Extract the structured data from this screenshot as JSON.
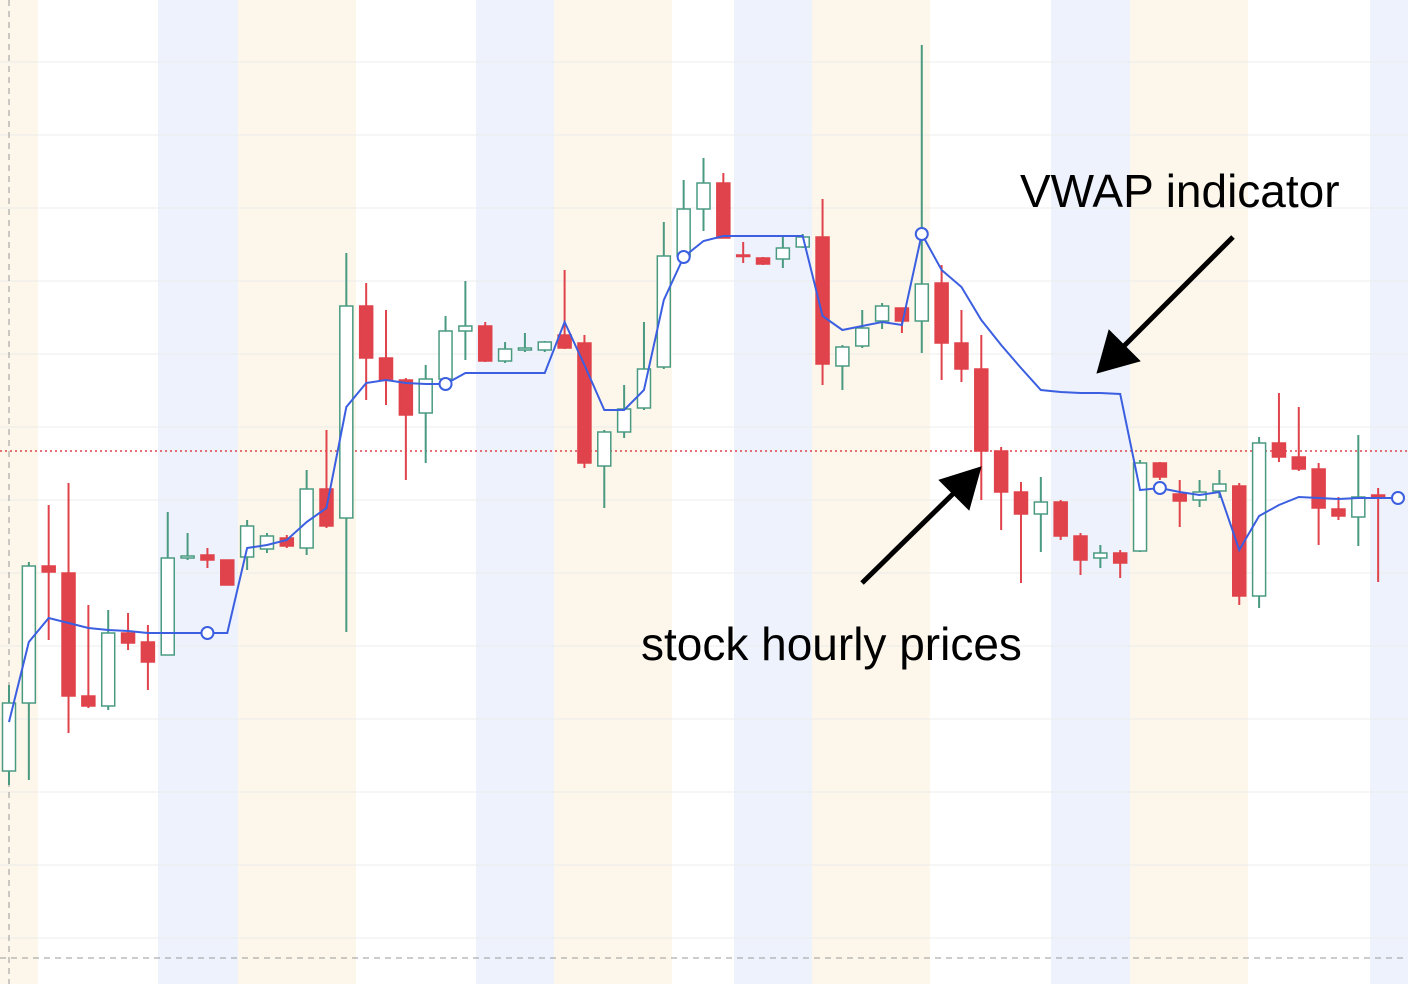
{
  "chart_data": {
    "type": "candlestick",
    "annotations": [
      "VWAP indicator",
      "stock hourly prices"
    ],
    "categories": [
      null,
      null,
      null,
      null,
      null,
      null,
      null,
      null,
      null,
      null,
      null,
      null,
      null,
      null,
      null,
      null,
      null,
      null,
      null,
      null,
      null,
      null,
      null,
      null,
      null,
      null,
      null,
      null,
      null,
      null,
      null,
      null,
      null,
      null,
      null,
      null,
      null,
      null,
      null,
      null,
      null,
      null,
      null,
      null,
      null,
      null,
      null,
      null,
      null,
      null,
      null,
      null,
      null,
      null,
      null,
      null,
      null,
      null,
      null,
      null,
      null,
      null,
      null,
      null,
      null,
      null,
      null,
      null,
      null,
      null,
      null
    ],
    "open": [
      21.3,
      28.1,
      41.8,
      41.1,
      28.8,
      27.8,
      35.1,
      34.2,
      32.9,
      42.6,
      42.9,
      42.4,
      42.7,
      43.5,
      44.6,
      43.6,
      49.5,
      46.6,
      67.8,
      62.6,
      60.4,
      57.1,
      60.5,
      65.3,
      65.8,
      62.3,
      63.4,
      63.4,
      64.9,
      64.1,
      51.8,
      55.2,
      57.6,
      61.7,
      72.8,
      77.5,
      80.1,
      72.9,
      72.6,
      72.5,
      73.7,
      74.7,
      61.8,
      63.8,
      66.3,
      67.6,
      66.3,
      70.1,
      64.1,
      61.5,
      53.3,
      49.2,
      47.0,
      48.2,
      44.8,
      42.6,
      43.1,
      43.3,
      52.1,
      49.0,
      48.4,
      49.3,
      49.8,
      38.8,
      54.1,
      52.7,
      51.5,
      47.5,
      46.7,
      48.9,
      null
    ],
    "high": [
      29.9,
      42.2,
      47.9,
      50.1,
      37.9,
      37.4,
      37.1,
      35.9,
      47.2,
      45.1,
      43.6,
      42.4,
      46.4,
      45.1,
      44.9,
      51.4,
      55.4,
      73.1,
      70.1,
      67.4,
      60.6,
      61.9,
      66.8,
      70.3,
      66.2,
      64.2,
      65.1,
      64.3,
      71.4,
      64.9,
      55.4,
      59.9,
      66.2,
      76.2,
      80.4,
      82.6,
      81.1,
      74.2,
      72.7,
      74.7,
      75.0,
      78.5,
      63.9,
      67.4,
      68.1,
      67.6,
      93.9,
      71.9,
      67.4,
      64.9,
      53.7,
      50.2,
      50.7,
      48.4,
      45.1,
      43.9,
      43.4,
      52.4,
      52.2,
      50.4,
      50.4,
      51.4,
      50.1,
      54.7,
      59.1,
      57.7,
      52.1,
      48.7,
      54.9,
      49.6,
      null
    ],
    "low": [
      19.9,
      20.4,
      34.4,
      25.1,
      27.6,
      27.4,
      33.4,
      29.4,
      32.9,
      42.4,
      41.6,
      39.9,
      41.4,
      43.1,
      43.6,
      42.9,
      45.6,
      35.2,
      58.4,
      57.9,
      50.4,
      52.1,
      60.2,
      62.4,
      62.2,
      62.1,
      63.2,
      63.2,
      63.5,
      51.6,
      47.6,
      54.6,
      57.4,
      61.5,
      72.6,
      75.3,
      74.6,
      72.1,
      71.9,
      71.6,
      73.6,
      59.9,
      59.4,
      63.6,
      65.5,
      65.1,
      63.1,
      60.4,
      60.2,
      48.4,
      45.4,
      40.1,
      43.2,
      44.4,
      40.9,
      41.6,
      40.6,
      43.2,
      50.4,
      45.7,
      47.7,
      48.6,
      37.9,
      37.6,
      52.2,
      51.3,
      43.9,
      46.4,
      43.8,
      40.2,
      null
    ],
    "close": [
      28.1,
      41.8,
      41.2,
      28.8,
      27.8,
      35.1,
      34.1,
      32.2,
      42.6,
      42.8,
      42.4,
      39.9,
      45.8,
      44.8,
      43.8,
      49.5,
      45.8,
      67.8,
      62.6,
      60.4,
      56.9,
      60.5,
      65.3,
      65.8,
      62.3,
      63.5,
      63.6,
      64.2,
      63.6,
      52.1,
      55.2,
      57.5,
      61.5,
      72.8,
      77.5,
      80.1,
      74.6,
      72.8,
      72.0,
      73.6,
      74.7,
      62.0,
      63.7,
      65.6,
      67.8,
      66.3,
      70.0,
      64.1,
      61.5,
      53.3,
      49.2,
      47.0,
      48.2,
      44.8,
      42.4,
      43.1,
      42.1,
      52.1,
      50.7,
      48.3,
      49.2,
      50.0,
      38.8,
      54.1,
      52.7,
      51.5,
      47.6,
      46.8,
      48.7,
      48.7,
      null
    ],
    "vwap": [
      26.2,
      34.2,
      36.6,
      36.1,
      35.6,
      35.4,
      35.3,
      35.1,
      35.1,
      35.1,
      35.1,
      35.1,
      43.6,
      43.9,
      44.4,
      46.2,
      47.6,
      57.7,
      60.1,
      60.4,
      60.1,
      60.0,
      60.0,
      61.1,
      61.1,
      61.1,
      61.1,
      61.1,
      66.2,
      61.9,
      57.4,
      57.4,
      59.4,
      68.4,
      72.7,
      74.3,
      74.8,
      74.8,
      74.8,
      74.8,
      74.8,
      66.8,
      65.4,
      65.8,
      66.2,
      65.9,
      75.0,
      71.4,
      69.7,
      66.4,
      63.9,
      61.6,
      59.4,
      59.2,
      59.1,
      59.1,
      59.0,
      49.4,
      49.6,
      49.2,
      48.9,
      49.2,
      43.4,
      46.8,
      47.9,
      48.7,
      48.6,
      48.5,
      48.6,
      48.6,
      48.6
    ],
    "up_color": "#4a9a82",
    "down_color": "#e0434b",
    "vwap_color": "#3b5fe0",
    "price_line": 53.3,
    "price_line_color": "#e0434b",
    "ylim": [
      0,
      98.4
    ],
    "yticks": [
      4.6,
      11.9,
      19.2,
      26.5,
      33.8,
      41.1,
      48.4,
      55.7,
      63.0,
      70.3,
      77.6,
      84.9,
      92.2
    ],
    "grid": true
  }
}
